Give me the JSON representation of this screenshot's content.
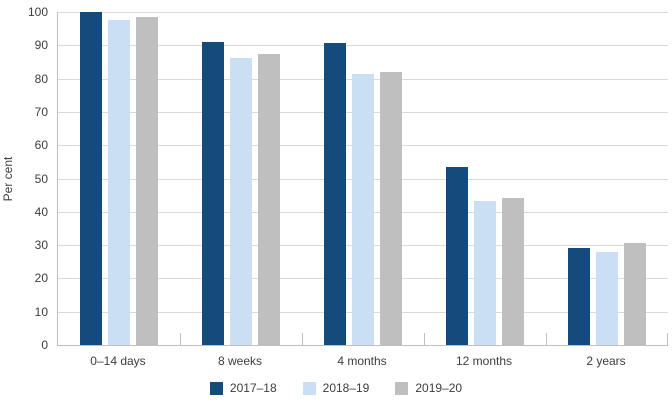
{
  "chart_data": {
    "type": "bar",
    "title": "",
    "ylabel": "Per cent",
    "xlabel": "",
    "ylim": [
      0,
      100
    ],
    "yticks": [
      0,
      10,
      20,
      30,
      40,
      50,
      60,
      70,
      80,
      90,
      100
    ],
    "grid": true,
    "legend_position": "bottom",
    "categories": [
      "0–14 days",
      "8 weeks",
      "4 months",
      "12 months",
      "2 years"
    ],
    "series": [
      {
        "name": "2017–18",
        "color": "#134C7C",
        "values": [
          99.9,
          90.9,
          90.8,
          53.4,
          29.1
        ]
      },
      {
        "name": "2018–19",
        "color": "#CBDFF4",
        "values": [
          97.5,
          86.2,
          81.3,
          43.1,
          27.9
        ]
      },
      {
        "name": "2019–20",
        "color": "#BFBFBF",
        "values": [
          98.4,
          87.3,
          82.0,
          44.1,
          30.5
        ]
      }
    ],
    "colors": {
      "gridline": "#D9D9D9",
      "axis": "#BFBFBF",
      "text": "#3D3D3D"
    }
  }
}
